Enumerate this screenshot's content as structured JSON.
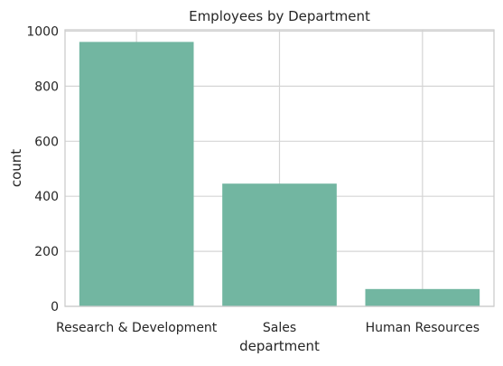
{
  "chart_data": {
    "type": "bar",
    "title": "Employees by Department",
    "xlabel": "department",
    "ylabel": "count",
    "categories": [
      "Research & Development",
      "Sales",
      "Human Resources"
    ],
    "values": [
      961,
      446,
      63
    ],
    "ylim": [
      0,
      1000
    ],
    "yticks": [
      0,
      200,
      400,
      600,
      800,
      1000
    ],
    "grid": true,
    "bar_color": "#72b6a1"
  }
}
